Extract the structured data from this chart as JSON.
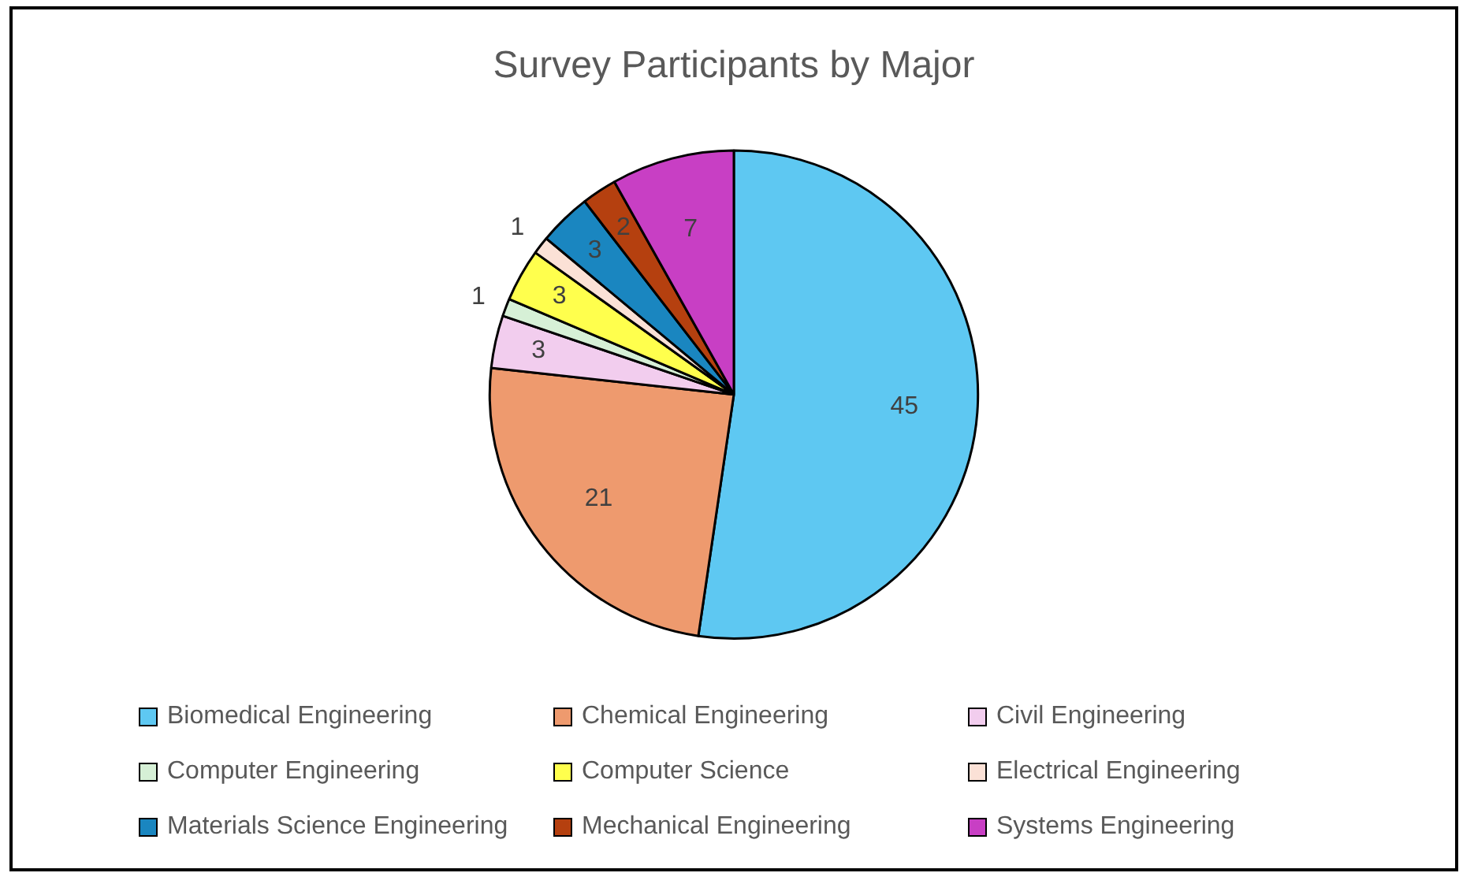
{
  "chart_data": {
    "type": "pie",
    "title": "Survey Participants by Major",
    "categories": [
      "Biomedical Engineering",
      "Chemical Engineering",
      "Civil Engineering",
      "Computer Engineering",
      "Computer Science",
      "Electrical Engineering",
      "Materials Science Engineering",
      "Mechanical Engineering",
      "Systems Engineering"
    ],
    "values": [
      45,
      21,
      3,
      1,
      3,
      1,
      3,
      2,
      7
    ],
    "colors": [
      "#5ec8f2",
      "#ee9a6e",
      "#f2cdee",
      "#d6f0d6",
      "#ffff4d",
      "#fbe1d6",
      "#1a86c0",
      "#b5400f",
      "#c83fc4"
    ],
    "data_labels": true,
    "legend": "bottom"
  }
}
